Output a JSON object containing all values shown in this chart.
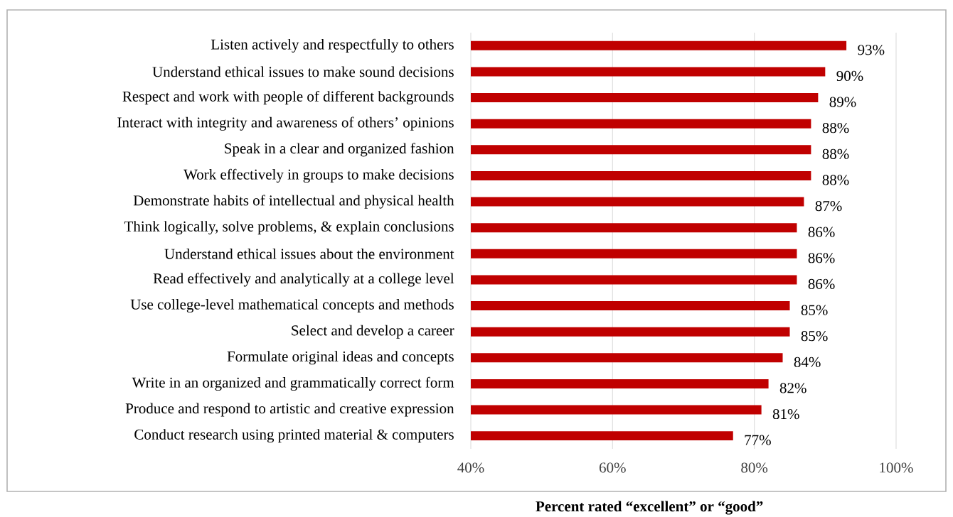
{
  "chart_data": {
    "type": "bar",
    "orientation": "horizontal",
    "categories": [
      "Listen actively and respectfully to others",
      "Understand ethical issues to make sound decisions",
      "Respect and work with people of different backgrounds",
      "Interact with integrity and awareness of others’ opinions",
      "Speak in a clear and organized fashion",
      "Work effectively in groups to make decisions",
      "Demonstrate habits of intellectual and physical health",
      "Think logically, solve problems, & explain conclusions",
      "Understand ethical issues about the environment",
      "Read effectively and analytically at a college level",
      "Use college-level mathematical concepts and methods",
      "Select and develop a career",
      "Formulate original ideas and concepts",
      "Write in an organized and grammatically correct form",
      "Produce and respond to artistic and creative expression",
      "Conduct research using printed material & computers"
    ],
    "values": [
      93,
      90,
      89,
      88,
      88,
      88,
      87,
      86,
      86,
      86,
      85,
      85,
      84,
      82,
      81,
      77
    ],
    "value_labels": [
      "93%",
      "90%",
      "89%",
      "88%",
      "88%",
      "88%",
      "87%",
      "86%",
      "86%",
      "86%",
      "85%",
      "85%",
      "84%",
      "82%",
      "81%",
      "77%"
    ],
    "color": "#c00000",
    "xlim": [
      40,
      100
    ],
    "xticks": [
      {
        "value": 40,
        "label": "40%"
      },
      {
        "value": 60,
        "label": "60%"
      },
      {
        "value": 80,
        "label": "80%"
      },
      {
        "value": 100,
        "label": "100%"
      }
    ],
    "xlabel": "Percent rated “excellent” or “good”",
    "grid": "x"
  }
}
